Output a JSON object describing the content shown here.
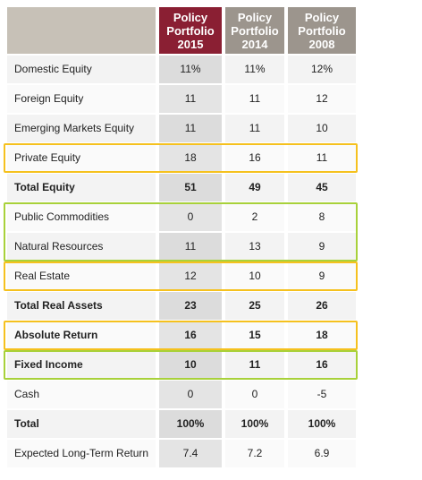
{
  "header": {
    "col1": [
      "Policy",
      "Portfolio",
      "2015"
    ],
    "col2": [
      "Policy",
      "Portfolio",
      "2014"
    ],
    "col3": [
      "Policy",
      "Portfolio",
      "2008"
    ]
  },
  "rows": [
    {
      "label": "Domestic Equity",
      "v1": "11%",
      "v2": "11%",
      "v3": "12%"
    },
    {
      "label": "Foreign Equity",
      "v1": "11",
      "v2": "11",
      "v3": "12"
    },
    {
      "label": "Emerging Markets Equity",
      "v1": "11",
      "v2": "11",
      "v3": "10"
    },
    {
      "label": "Private Equity",
      "v1": "18",
      "v2": "16",
      "v3": "11"
    },
    {
      "label": "Total Equity",
      "v1": "51",
      "v2": "49",
      "v3": "45"
    },
    {
      "label": "Public Commodities",
      "v1": "0",
      "v2": "2",
      "v3": "8"
    },
    {
      "label": "Natural Resources",
      "v1": "11",
      "v2": "13",
      "v3": "9"
    },
    {
      "label": "Real Estate",
      "v1": "12",
      "v2": "10",
      "v3": "9"
    },
    {
      "label": "Total Real Assets",
      "v1": "23",
      "v2": "25",
      "v3": "26"
    },
    {
      "label": "Absolute Return",
      "v1": "16",
      "v2": "15",
      "v3": "18"
    },
    {
      "label": "Fixed Income",
      "v1": "10",
      "v2": "11",
      "v3": "16"
    },
    {
      "label": "Cash",
      "v1": "0",
      "v2": "0",
      "v3": "-5"
    },
    {
      "label": "Total",
      "v1": "100%",
      "v2": "100%",
      "v3": "100%"
    },
    {
      "label": "Expected Long-Term Return",
      "v1": "7.4",
      "v2": "7.2",
      "v3": "6.9"
    }
  ],
  "colors": {
    "header_2015": "#8a1f33",
    "header_other": "#9c958d",
    "highlight_yellow": "#f5c11e",
    "highlight_green": "#a8d13a"
  }
}
